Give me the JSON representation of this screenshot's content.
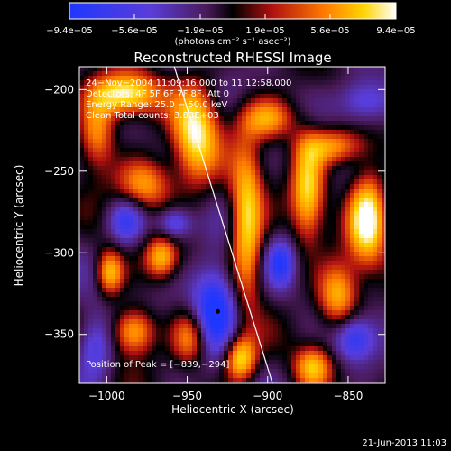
{
  "chart_data": {
    "type": "heatmap",
    "title": "Reconstructed RHESSI Image",
    "xlabel": "Heliocentric X (arcsec)",
    "ylabel": "Heliocentric Y (arcsec)",
    "xlim": [
      -1017,
      -827
    ],
    "ylim": [
      -380,
      -186
    ],
    "x_ticks": [
      {
        "value": -1000,
        "label": "−1000"
      },
      {
        "value": -950,
        "label": "−950"
      },
      {
        "value": -900,
        "label": "−900"
      },
      {
        "value": -850,
        "label": "−850"
      }
    ],
    "y_ticks": [
      {
        "value": -200,
        "label": "−200"
      },
      {
        "value": -250,
        "label": "−250"
      },
      {
        "value": -300,
        "label": "−300"
      },
      {
        "value": -350,
        "label": "−350"
      }
    ],
    "colorbar": {
      "min": -9.4e-05,
      "max": 9.4e-05,
      "tick_labels": [
        "−9.4e−05",
        "−5.6e−05",
        "−1.9e−05",
        "1.9e−05",
        "5.6e−05",
        "9.4e−05"
      ],
      "unit_label": "(photons cm⁻² s⁻¹ asec⁻²)"
    },
    "annotations": [
      "24−Nov−2004 11:09:16.000 to 11:12:58.000",
      "Detectors: 4F 5F 6F 7F 8F, Att 0",
      "Energy Range: 25.0 − 50.0 keV",
      "Clean     Total counts: 3.83E+03"
    ],
    "peak_label": "Position of Peak = [−839,−294]",
    "peak": {
      "x": -839,
      "y": -294
    },
    "marker": {
      "x": -931,
      "y": -336
    },
    "limb_line": [
      [
        -958,
        -186
      ],
      [
        -897,
        -380
      ]
    ],
    "blobs": [
      {
        "x": -988,
        "y": -203,
        "sx": 14,
        "sy": 9,
        "a": 8.5
      },
      {
        "x": -976,
        "y": -258,
        "sx": 12,
        "sy": 11,
        "a": 6
      },
      {
        "x": -945,
        "y": -228,
        "sx": 10,
        "sy": 22,
        "a": 8
      },
      {
        "x": -913,
        "y": -283,
        "sx": 7,
        "sy": 33,
        "a": 8
      },
      {
        "x": -900,
        "y": -218,
        "sx": 12,
        "sy": 9,
        "a": 6
      },
      {
        "x": -875,
        "y": -262,
        "sx": 7,
        "sy": 22,
        "a": 7
      },
      {
        "x": -859,
        "y": -235,
        "sx": 14,
        "sy": 8,
        "a": 6
      },
      {
        "x": -838,
        "y": -278,
        "sx": 8,
        "sy": 20,
        "a": 9
      },
      {
        "x": -856,
        "y": -326,
        "sx": 9,
        "sy": 14,
        "a": 7
      },
      {
        "x": -872,
        "y": -370,
        "sx": 8,
        "sy": 9,
        "a": 6
      },
      {
        "x": -966,
        "y": -303,
        "sx": 7,
        "sy": 9,
        "a": 6
      },
      {
        "x": -998,
        "y": -312,
        "sx": 6,
        "sy": 10,
        "a": 7
      },
      {
        "x": -983,
        "y": -348,
        "sx": 9,
        "sy": 10,
        "a": 7
      },
      {
        "x": -917,
        "y": -365,
        "sx": 7,
        "sy": 10,
        "a": 8
      },
      {
        "x": -948,
        "y": -352,
        "sx": 8,
        "sy": 12,
        "a": 6
      },
      {
        "x": -1006,
        "y": -227,
        "sx": 8,
        "sy": 16,
        "a": 6
      },
      {
        "x": -958,
        "y": -282,
        "sx": 8,
        "sy": 7,
        "a": -5
      },
      {
        "x": -933,
        "y": -333,
        "sx": 10,
        "sy": 18,
        "a": -8
      },
      {
        "x": -988,
        "y": -280,
        "sx": 8,
        "sy": 10,
        "a": -5
      },
      {
        "x": -846,
        "y": -353,
        "sx": 9,
        "sy": 10,
        "a": -6
      },
      {
        "x": -892,
        "y": -306,
        "sx": 6,
        "sy": 10,
        "a": -5
      },
      {
        "x": -840,
        "y": -207,
        "sx": 12,
        "sy": 10,
        "a": -5
      },
      {
        "x": -1007,
        "y": -357,
        "sx": 8,
        "sy": 14,
        "a": -5
      }
    ]
  },
  "footer": {
    "timestamp": "21-Jun-2013 11:03"
  }
}
